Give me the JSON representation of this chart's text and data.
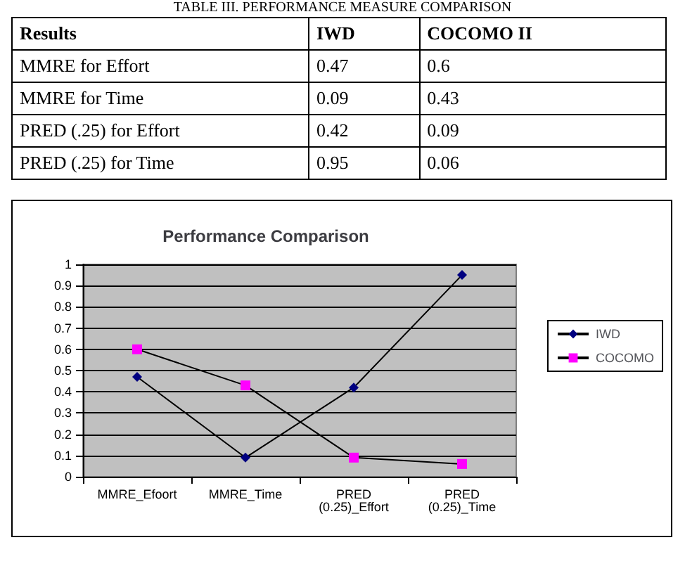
{
  "chart_data": [
    {
      "type": "other",
      "title": "TABLE III.  PERFORMANCE MEASURE COMPARISON",
      "xlabel": "Results",
      "categories": [
        "MMRE for Effort",
        "MMRE for Time",
        "PRED (.25) for Effort",
        "PRED (.25) for Time"
      ],
      "series": [
        {
          "name": "IWD",
          "values": [
            0.47,
            0.09,
            0.42,
            0.95
          ]
        },
        {
          "name": "COCOMO II",
          "values": [
            0.6,
            0.43,
            0.09,
            0.06
          ]
        }
      ],
      "data_labels": true
    },
    {
      "type": "line",
      "title": "Performance Comparison",
      "categories": [
        "MMRE_Efoort",
        "MMRE_Time",
        "PRED\n(0.25)_Effort",
        "PRED\n(0.25)_Time"
      ],
      "series": [
        {
          "name": "IWD",
          "color": "#000080",
          "marker": "diamond",
          "values": [
            0.47,
            0.09,
            0.42,
            0.95
          ]
        },
        {
          "name": "COCOMO",
          "color": "#ff00ff",
          "marker": "square",
          "values": [
            0.6,
            0.43,
            0.09,
            0.06
          ]
        }
      ],
      "ylim": [
        0,
        1
      ],
      "yticks": [
        0,
        0.1,
        0.2,
        0.3,
        0.4,
        0.5,
        0.6,
        0.7,
        0.8,
        0.9,
        1
      ],
      "grid": "y",
      "legend": "right"
    }
  ]
}
